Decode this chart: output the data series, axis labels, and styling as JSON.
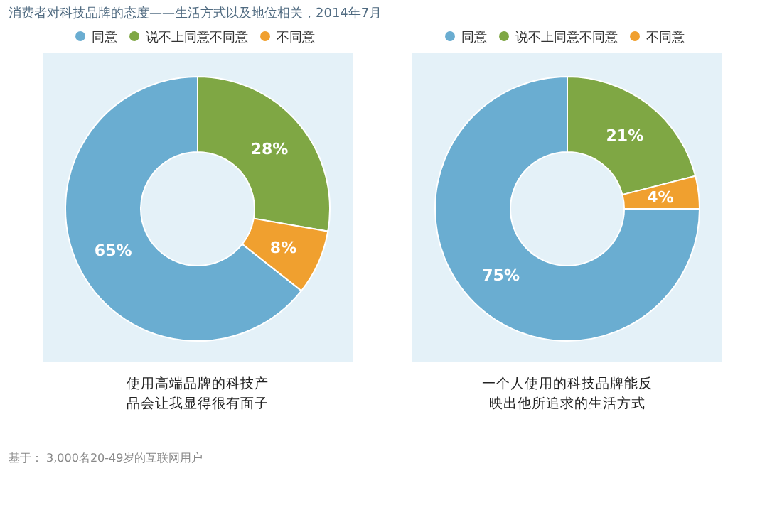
{
  "chart_data": [
    {
      "type": "donut",
      "title": "消费者对科技品牌的态度——生活方式以及地位相关，2014年7月",
      "categories": [
        "同意",
        "说不上同意不同意",
        "不同意"
      ],
      "values": [
        65,
        28,
        8
      ],
      "value_labels": [
        "65%",
        "28%",
        "8%"
      ],
      "colors": [
        "#6aadd1",
        "#7fa744",
        "#f0a02f"
      ],
      "legend": "top",
      "xlabel": "使用高端品牌的科技产品会让我显得很有面子",
      "annotations": [
        "基于： 3,000名20-49岁的互联网用户"
      ]
    },
    {
      "type": "donut",
      "categories": [
        "同意",
        "说不上同意不同意",
        "不同意"
      ],
      "values": [
        75,
        21,
        4
      ],
      "value_labels": [
        "75%",
        "21%",
        "4%"
      ],
      "colors": [
        "#6aadd1",
        "#7fa744",
        "#f0a02f"
      ],
      "legend": "top",
      "xlabel": "一个人使用的科技品牌能反映出他所追求的生活方式"
    }
  ]
}
